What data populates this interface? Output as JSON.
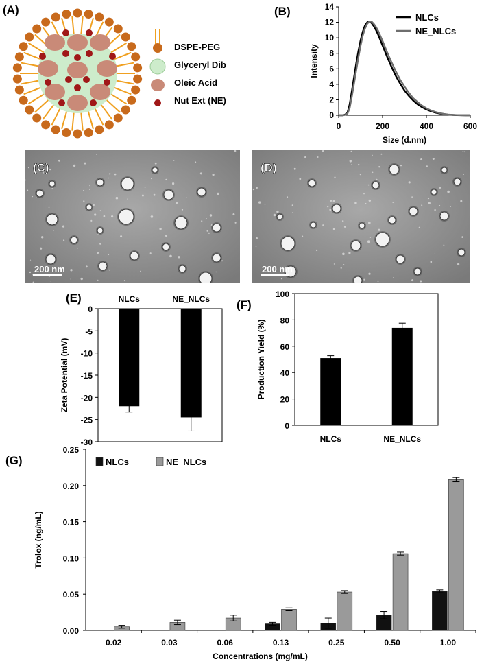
{
  "panels": {
    "a": {
      "letter": "(A)",
      "legend": [
        {
          "label": "DSPE-PEG",
          "icon": "dspe-peg-icon"
        },
        {
          "label": "Glyceryl Dibehenate",
          "icon": "glyceryl-dibehenate-icon"
        },
        {
          "label": "Oleic Acid",
          "icon": "oleic-acid-icon"
        },
        {
          "label": "Nut Ext (NE)",
          "icon": "nut-extract-icon"
        }
      ],
      "colors": {
        "peg": "#f0a020",
        "core": "#cdeccb",
        "oleic": "#c98a78",
        "nut": "#a01818",
        "head": "#c86a1c"
      }
    },
    "b": {
      "letter": "(B)"
    },
    "c": {
      "letter": "(C)",
      "scale": "200 nm"
    },
    "d": {
      "letter": "(D)",
      "scale": "200 nm"
    },
    "e": {
      "letter": "(E)"
    },
    "f": {
      "letter": "(F)"
    },
    "g": {
      "letter": "(G)"
    }
  },
  "chart_data": [
    {
      "id": "B",
      "type": "line",
      "xlabel": "Size (d.nm)",
      "ylabel": "Intensity",
      "xlim": [
        0,
        600
      ],
      "ylim": [
        0,
        14
      ],
      "xticks": [
        0,
        200,
        400,
        600
      ],
      "yticks": [
        0,
        2,
        4,
        6,
        8,
        10,
        12,
        14
      ],
      "legend_position": "top-right",
      "series": [
        {
          "name": "NLCs",
          "color": "#000000",
          "x": [
            0,
            20,
            30,
            40,
            50,
            60,
            70,
            80,
            90,
            100,
            110,
            120,
            130,
            140,
            150,
            160,
            170,
            180,
            200,
            220,
            240,
            260,
            280,
            300,
            320,
            340,
            360,
            380,
            400,
            420,
            440,
            460,
            480,
            500,
            520,
            540,
            560,
            580,
            600
          ],
          "y": [
            0,
            0,
            0.1,
            0.3,
            1.4,
            3.1,
            4.9,
            6.7,
            8.3,
            9.7,
            10.8,
            11.6,
            12.0,
            12.1,
            11.9,
            11.5,
            11.0,
            10.4,
            9.0,
            7.6,
            6.3,
            5.1,
            4.1,
            3.2,
            2.5,
            1.9,
            1.4,
            1.05,
            0.75,
            0.52,
            0.35,
            0.22,
            0.13,
            0.07,
            0.04,
            0.02,
            0.01,
            0,
            0
          ]
        },
        {
          "name": "NE_NLCs",
          "color": "#6e6e6e",
          "x": [
            0,
            20,
            30,
            40,
            50,
            60,
            70,
            80,
            90,
            100,
            110,
            120,
            130,
            140,
            150,
            160,
            170,
            180,
            200,
            220,
            240,
            260,
            280,
            300,
            320,
            340,
            360,
            380,
            400,
            420,
            440,
            460,
            480,
            500,
            520,
            540,
            560,
            580,
            600
          ],
          "y": [
            0,
            0,
            0.05,
            0.2,
            0.9,
            2.4,
            4.1,
            5.8,
            7.5,
            9.0,
            10.3,
            11.2,
            11.8,
            12.1,
            12.1,
            11.8,
            11.4,
            10.9,
            9.6,
            8.2,
            6.9,
            5.7,
            4.6,
            3.7,
            2.9,
            2.2,
            1.7,
            1.25,
            0.9,
            0.63,
            0.43,
            0.28,
            0.17,
            0.1,
            0.05,
            0.03,
            0.01,
            0,
            0
          ]
        }
      ]
    },
    {
      "id": "E",
      "type": "bar",
      "categories": [
        "NLCs",
        "NE_NLCs"
      ],
      "values": [
        -22.0,
        -24.5
      ],
      "errors": [
        1.3,
        3.1
      ],
      "ylabel": "Zeta Potential (mV)",
      "ylim": [
        -30,
        0
      ],
      "yticks": [
        0,
        -5,
        -10,
        -15,
        -20,
        -25,
        -30
      ],
      "color": "#000000"
    },
    {
      "id": "F",
      "type": "bar",
      "categories": [
        "NLCs",
        "NE_NLCs"
      ],
      "values": [
        51,
        74
      ],
      "errors": [
        1.8,
        3.5
      ],
      "ylabel": "Production Yield (%)",
      "ylim": [
        0,
        100
      ],
      "yticks": [
        0,
        20,
        40,
        60,
        80,
        100
      ],
      "color": "#000000"
    },
    {
      "id": "G",
      "type": "bar",
      "categories": [
        "0.02",
        "0.03",
        "0.06",
        "0.13",
        "0.25",
        "0.50",
        "1.00"
      ],
      "xlabel": "Concentrations (mg/mL)",
      "ylabel": "Trolox (ng/mL)",
      "ylim": [
        0,
        0.25
      ],
      "yticks": [
        "0.00",
        "0.05",
        "0.10",
        "0.15",
        "0.20",
        "0.25"
      ],
      "legend_position": "top-left",
      "series": [
        {
          "name": "NLCs",
          "color": "#111111",
          "values": [
            0,
            0,
            0,
            0.009,
            0.01,
            0.021,
            0.054
          ],
          "errors": [
            0,
            0,
            0,
            0.002,
            0.007,
            0.005,
            0.002
          ]
        },
        {
          "name": "NE_NLCs",
          "color": "#9a9a9a",
          "values": [
            0.005,
            0.011,
            0.017,
            0.029,
            0.053,
            0.106,
            0.208
          ],
          "errors": [
            0.002,
            0.003,
            0.004,
            0.002,
            0.002,
            0.002,
            0.003
          ]
        }
      ]
    }
  ]
}
